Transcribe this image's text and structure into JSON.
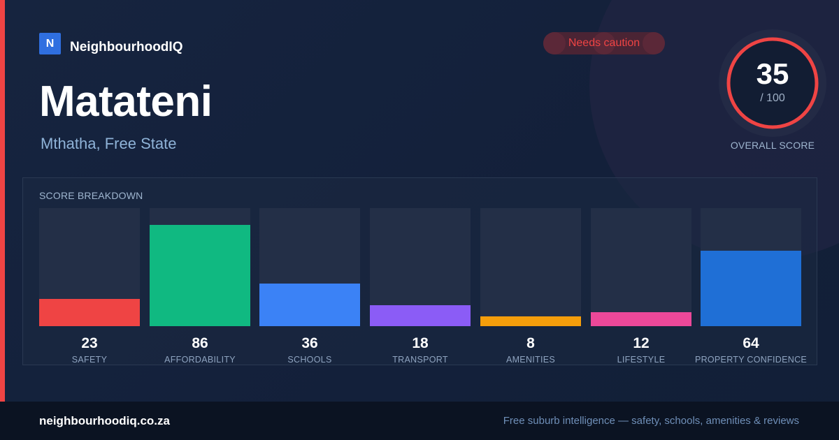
{
  "brand": {
    "logo_letter": "N",
    "name": "NeighbourhoodIQ",
    "logo_color": "#2f6fe0"
  },
  "status_badge": {
    "label": "Needs caution",
    "color": "#ef4444"
  },
  "suburb": {
    "name": "Matateni",
    "location": "Mthatha, Free State"
  },
  "overall_score": {
    "value": "35",
    "max_label": "/ 100",
    "caption": "OVERALL SCORE",
    "fraction": 0.35,
    "ring_color": "#ef4444"
  },
  "breakdown": {
    "title": "SCORE BREAKDOWN",
    "max": 100,
    "items": [
      {
        "label": "SAFETY",
        "value": 23,
        "color": "#ef4444"
      },
      {
        "label": "AFFORDABILITY",
        "value": 86,
        "color": "#10b981"
      },
      {
        "label": "SCHOOLS",
        "value": 36,
        "color": "#3b82f6"
      },
      {
        "label": "TRANSPORT",
        "value": 18,
        "color": "#8b5cf6"
      },
      {
        "label": "AMENITIES",
        "value": 8,
        "color": "#f59e0b"
      },
      {
        "label": "LIFESTYLE",
        "value": 12,
        "color": "#ec4899"
      },
      {
        "label": "PROPERTY CONFIDENCE",
        "value": 64,
        "color": "#1f6fd6"
      }
    ]
  },
  "footer": {
    "url": "neighbourhoodiq.co.za",
    "tagline": "Free suburb intelligence — safety, schools, amenities & reviews"
  },
  "colors": {
    "background": "#13213a",
    "accent_red": "#ef4444",
    "footer_bg": "#0b1322"
  }
}
